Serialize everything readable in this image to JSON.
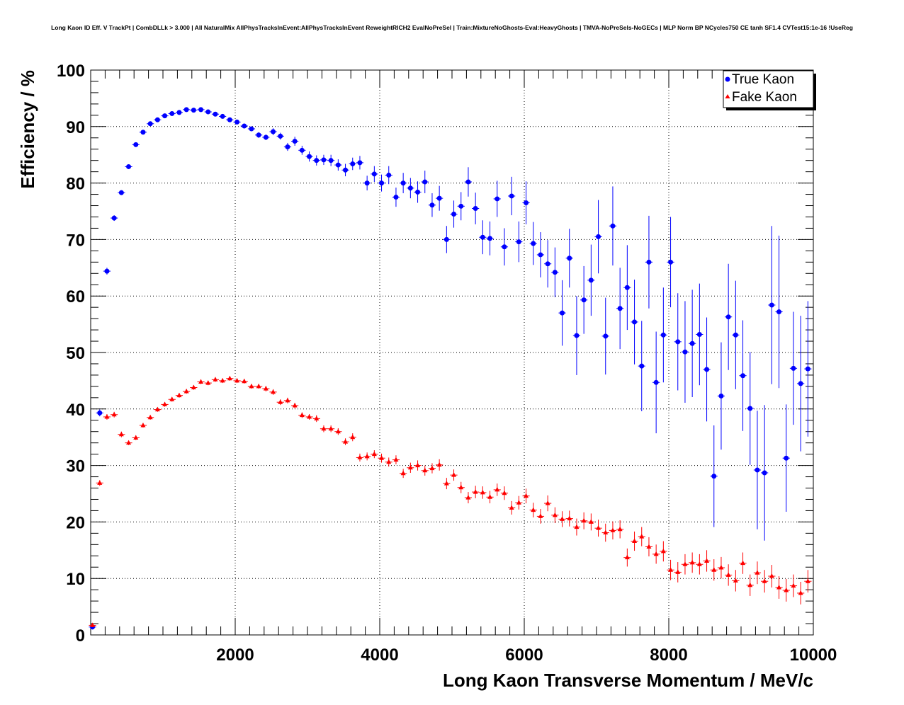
{
  "chart_data": {
    "type": "scatter",
    "title": "Long Kaon ID Eff. V TrackPt | CombDLLk > 3.000 | All NaturalMix AllPhysTracksInEvent:AllPhysTracksInEvent ReweightRICH2 EvalNoPreSel | Train:MixtureNoGhosts-Eval:HeavyGhosts | TMVA-NoPreSels-NoGECs | MLP Norm BP NCycles750 CE tanh SF1.4 CVTest15:1e-16 !UseReg",
    "xlabel": "Long Kaon Transverse Momentum / MeV/c",
    "ylabel": "Efficiency / %",
    "xlim": [
      0,
      10000
    ],
    "ylim": [
      0,
      100
    ],
    "grid": true,
    "x_ticks": [
      2000,
      4000,
      6000,
      8000,
      10000
    ],
    "x_tick_labels": [
      "2000",
      "4000",
      "6000",
      "8000",
      "10000"
    ],
    "y_ticks": [
      0,
      10,
      20,
      30,
      40,
      50,
      60,
      70,
      80,
      90,
      100
    ],
    "y_tick_labels": [
      "0",
      "10",
      "20",
      "30",
      "40",
      "50",
      "60",
      "70",
      "80",
      "90",
      "100"
    ],
    "legend_position": "top-right",
    "x": [
      25,
      125,
      225,
      325,
      425,
      525,
      625,
      725,
      825,
      925,
      1025,
      1125,
      1225,
      1325,
      1425,
      1525,
      1625,
      1725,
      1825,
      1925,
      2025,
      2125,
      2225,
      2325,
      2425,
      2525,
      2625,
      2725,
      2825,
      2925,
      3025,
      3125,
      3225,
      3325,
      3425,
      3525,
      3625,
      3725,
      3825,
      3925,
      4025,
      4125,
      4225,
      4325,
      4425,
      4525,
      4625,
      4725,
      4825,
      4925,
      5025,
      5125,
      5225,
      5325,
      5425,
      5525,
      5625,
      5725,
      5825,
      5925,
      6025,
      6125,
      6225,
      6325,
      6425,
      6525,
      6625,
      6725,
      6825,
      6925,
      7025,
      7125,
      7225,
      7325,
      7425,
      7525,
      7625,
      7725,
      7825,
      7925,
      8025,
      8125,
      8225,
      8325,
      8425,
      8525,
      8625,
      8725,
      8825,
      8925,
      9025,
      9125,
      9225,
      9325,
      9425,
      9525,
      9625,
      9725,
      9825,
      9925
    ],
    "x_err": 50,
    "series": [
      {
        "name": "True Kaon",
        "marker": "circle",
        "color": "#0000ff",
        "values": [
          1.4,
          39.3,
          64.4,
          73.8,
          78.3,
          82.9,
          86.8,
          89.0,
          90.5,
          91.2,
          91.9,
          92.3,
          92.5,
          93.0,
          92.9,
          93.0,
          92.6,
          92.2,
          91.8,
          91.2,
          90.8,
          90.1,
          89.6,
          88.5,
          88.1,
          89.1,
          88.3,
          86.4,
          87.4,
          85.8,
          84.7,
          84.0,
          84.1,
          84.0,
          83.2,
          82.3,
          83.4,
          83.6,
          80.0,
          81.6,
          80.0,
          81.4,
          77.5,
          80.0,
          79.1,
          78.4,
          80.2,
          76.1,
          77.3,
          70.0,
          74.5,
          75.9,
          80.2,
          75.5,
          70.4,
          70.2,
          77.2,
          68.7,
          77.7,
          69.6,
          76.5,
          69.3,
          67.3,
          65.7,
          64.2,
          57.0,
          66.7,
          53.0,
          59.3,
          62.8,
          70.5,
          52.9,
          72.4,
          57.8,
          61.5,
          55.4,
          47.6,
          66.0,
          44.7,
          53.1,
          66.0,
          51.9,
          50.1,
          51.6,
          53.2,
          47.0,
          28.1,
          42.3,
          56.3,
          53.1,
          45.9,
          40.1,
          29.2,
          28.7,
          58.4,
          57.2,
          31.3,
          47.2,
          44.5,
          47.1
        ],
        "errors": [
          0.3,
          0.6,
          0.6,
          0.5,
          0.4,
          0.4,
          0.3,
          0.3,
          0.3,
          0.3,
          0.3,
          0.3,
          0.3,
          0.3,
          0.3,
          0.3,
          0.3,
          0.3,
          0.3,
          0.4,
          0.4,
          0.4,
          0.4,
          0.5,
          0.5,
          0.6,
          0.6,
          0.7,
          0.8,
          0.8,
          0.9,
          0.9,
          0.9,
          1.0,
          1.0,
          1.1,
          1.1,
          1.2,
          1.3,
          1.4,
          1.5,
          1.6,
          1.7,
          1.8,
          1.8,
          1.9,
          2.0,
          2.1,
          2.2,
          2.4,
          2.4,
          2.5,
          2.6,
          2.8,
          3.0,
          3.0,
          3.2,
          3.3,
          3.4,
          3.6,
          3.8,
          3.8,
          4.0,
          4.2,
          4.4,
          5.8,
          5.2,
          7.0,
          6.0,
          6.3,
          6.5,
          6.8,
          7.0,
          7.2,
          7.5,
          7.5,
          8.0,
          8.2,
          9.0,
          8.4,
          8.0,
          8.6,
          9.0,
          9.5,
          9.0,
          9.2,
          9.0,
          9.5,
          9.4,
          9.6,
          9.8,
          10.0,
          10.5,
          12.0,
          14.0,
          13.5,
          9.5,
          10.0,
          12.0,
          12.0
        ]
      },
      {
        "name": "Fake Kaon",
        "marker": "triangle",
        "color": "#ff0000",
        "values": [
          1.7,
          26.9,
          38.6,
          39.0,
          35.5,
          34.0,
          34.9,
          37.1,
          38.5,
          39.9,
          40.8,
          41.7,
          42.4,
          43.1,
          43.8,
          44.8,
          44.6,
          45.2,
          45.0,
          45.4,
          45.0,
          44.9,
          44.0,
          44.0,
          43.6,
          43.0,
          41.2,
          41.5,
          40.6,
          38.9,
          38.6,
          38.3,
          36.5,
          36.5,
          36.0,
          34.2,
          35.0,
          31.4,
          31.6,
          32.0,
          31.3,
          30.6,
          31.0,
          28.6,
          29.6,
          30.0,
          29.1,
          29.5,
          30.1,
          26.8,
          28.3,
          26.1,
          24.3,
          25.3,
          25.2,
          24.4,
          25.7,
          25.1,
          22.5,
          23.4,
          24.6,
          22.1,
          21.0,
          23.3,
          21.2,
          20.5,
          20.6,
          19.1,
          20.2,
          20.0,
          18.9,
          18.1,
          18.5,
          18.7,
          13.7,
          16.6,
          17.4,
          15.6,
          14.3,
          14.8,
          11.5,
          11.1,
          12.5,
          12.8,
          12.5,
          13.1,
          11.5,
          11.9,
          10.6,
          9.6,
          12.7,
          8.8,
          11.0,
          9.5,
          10.4,
          8.4,
          7.9,
          8.7,
          7.4,
          9.5
        ],
        "errors": [
          0.3,
          0.5,
          0.5,
          0.5,
          0.5,
          0.4,
          0.4,
          0.4,
          0.4,
          0.4,
          0.4,
          0.4,
          0.4,
          0.4,
          0.4,
          0.4,
          0.4,
          0.4,
          0.4,
          0.4,
          0.4,
          0.4,
          0.4,
          0.4,
          0.5,
          0.5,
          0.5,
          0.5,
          0.5,
          0.5,
          0.5,
          0.6,
          0.6,
          0.6,
          0.6,
          0.6,
          0.7,
          0.7,
          0.7,
          0.7,
          0.8,
          0.8,
          0.8,
          0.8,
          0.9,
          0.9,
          0.9,
          0.9,
          1.0,
          1.0,
          1.0,
          1.0,
          1.0,
          1.1,
          1.1,
          1.1,
          1.1,
          1.2,
          1.2,
          1.2,
          1.3,
          1.3,
          1.3,
          1.4,
          1.4,
          1.4,
          1.4,
          1.5,
          1.5,
          1.5,
          1.5,
          1.6,
          1.6,
          1.6,
          1.6,
          1.7,
          1.7,
          1.7,
          1.7,
          1.8,
          1.8,
          1.8,
          1.8,
          1.8,
          1.8,
          1.9,
          1.9,
          1.9,
          1.9,
          1.9,
          1.9,
          1.9,
          2.0,
          2.0,
          2.0,
          2.0,
          2.0,
          2.0,
          2.0,
          2.0
        ]
      }
    ]
  }
}
